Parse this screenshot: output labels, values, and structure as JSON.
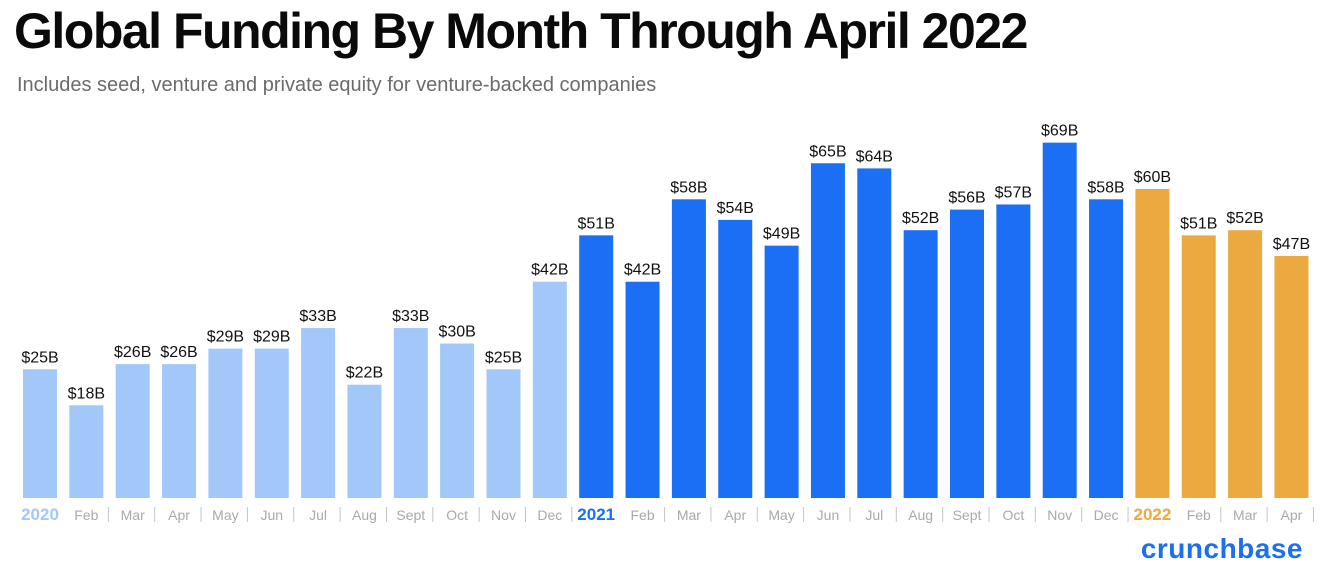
{
  "title": "Global Funding By Month Through April 2022",
  "subtitle": "Includes seed, venture and private equity for venture-backed companies",
  "brand": "crunchbase",
  "colors": {
    "y2020": "#a2c8fa",
    "y2021": "#1b6ff4",
    "y2022": "#eca93f",
    "month_label": "#a9a9a9",
    "value_label": "#111111",
    "brand": "#1d6ff2"
  },
  "chart_data": {
    "type": "bar",
    "title": "Global Funding By Month Through April 2022",
    "subtitle": "Includes seed, venture and private equity for venture-backed companies",
    "unit": "USD billions",
    "ylim": [
      0,
      70
    ],
    "grid": false,
    "categories": [
      "2020",
      "Feb",
      "Mar",
      "Apr",
      "May",
      "Jun",
      "Jul",
      "Aug",
      "Sept",
      "Oct",
      "Nov",
      "Dec",
      "2021",
      "Feb",
      "Mar",
      "Apr",
      "May",
      "Jun",
      "Jul",
      "Aug",
      "Sept",
      "Oct",
      "Nov",
      "Dec",
      "2022",
      "Feb",
      "Mar",
      "Apr"
    ],
    "values": [
      25,
      18,
      26,
      26,
      29,
      29,
      33,
      22,
      33,
      30,
      25,
      42,
      51,
      42,
      58,
      54,
      49,
      65,
      64,
      52,
      56,
      57,
      69,
      58,
      60,
      51,
      52,
      47
    ],
    "labels": [
      "$25B",
      "$18B",
      "$26B",
      "$26B",
      "$29B",
      "$29B",
      "$33B",
      "$22B",
      "$33B",
      "$30B",
      "$25B",
      "$42B",
      "$51B",
      "$42B",
      "$58B",
      "$54B",
      "$49B",
      "$65B",
      "$64B",
      "$52B",
      "$56B",
      "$57B",
      "$69B",
      "$58B",
      "$60B",
      "$51B",
      "$52B",
      "$47B"
    ],
    "years": [
      "2020",
      "2020",
      "2020",
      "2020",
      "2020",
      "2020",
      "2020",
      "2020",
      "2020",
      "2020",
      "2020",
      "2020",
      "2021",
      "2021",
      "2021",
      "2021",
      "2021",
      "2021",
      "2021",
      "2021",
      "2021",
      "2021",
      "2021",
      "2021",
      "2022",
      "2022",
      "2022",
      "2022"
    ]
  }
}
